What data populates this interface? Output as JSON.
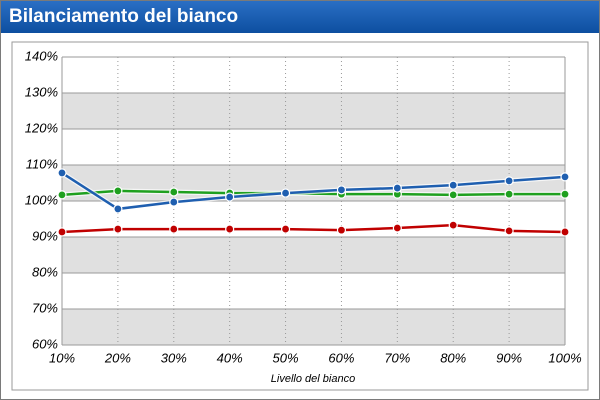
{
  "chart_data": {
    "type": "line",
    "title": "Bilanciamento del bianco",
    "xlabel": "Livello del bianco",
    "categories": [
      "10%",
      "20%",
      "30%",
      "40%",
      "50%",
      "60%",
      "70%",
      "80%",
      "90%",
      "100%"
    ],
    "ylim": [
      60,
      140
    ],
    "yticks": [
      {
        "value": 60,
        "label": "60%"
      },
      {
        "value": 70,
        "label": "70%"
      },
      {
        "value": 80,
        "label": "80%"
      },
      {
        "value": 90,
        "label": "90%"
      },
      {
        "value": 100,
        "label": "100%"
      },
      {
        "value": 110,
        "label": "110%"
      },
      {
        "value": 120,
        "label": "120%"
      },
      {
        "value": 130,
        "label": "130%"
      },
      {
        "value": 140,
        "label": "140%"
      }
    ],
    "grid": true,
    "series": [
      {
        "color": "#c00000",
        "values": [
          91.4,
          92.2,
          92.2,
          92.2,
          92.2,
          91.9,
          92.5,
          93.3,
          91.7,
          91.4
        ]
      },
      {
        "color": "#1fa01f",
        "values": [
          101.7,
          102.8,
          102.5,
          102.2,
          102.2,
          101.9,
          101.9,
          101.7,
          101.9,
          101.9
        ]
      },
      {
        "color": "#1f5fb0",
        "values": [
          107.8,
          97.8,
          99.7,
          101.1,
          102.2,
          103.1,
          103.6,
          104.4,
          105.6,
          106.7
        ]
      }
    ]
  }
}
